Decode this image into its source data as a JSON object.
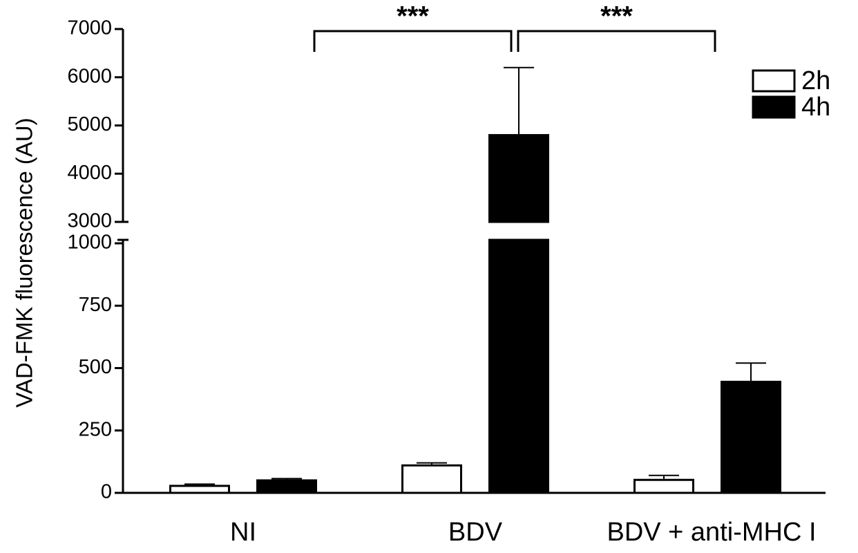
{
  "chart_data": {
    "type": "bar",
    "y_label": "VAD-FMK fluorescence (AU)",
    "categories": [
      "NI",
      "BDV",
      "BDV + anti-MHC I"
    ],
    "series": [
      {
        "name": "2h",
        "color": "#ffffff",
        "values": [
          28,
          110,
          52
        ],
        "errors": [
          7,
          10,
          18
        ]
      },
      {
        "name": "4h",
        "color": "#000000",
        "values": [
          50,
          4800,
          445
        ],
        "errors": [
          7,
          1400,
          75
        ]
      }
    ],
    "ylim_lower": [
      0,
      1000
    ],
    "yticks_lower": [
      0,
      250,
      500,
      750,
      1000
    ],
    "ylim_upper": [
      3000,
      7000
    ],
    "yticks_upper": [
      3000,
      4000,
      5000,
      6000,
      7000
    ],
    "annotations": [
      "***",
      "***"
    ],
    "legend": "upper right"
  }
}
